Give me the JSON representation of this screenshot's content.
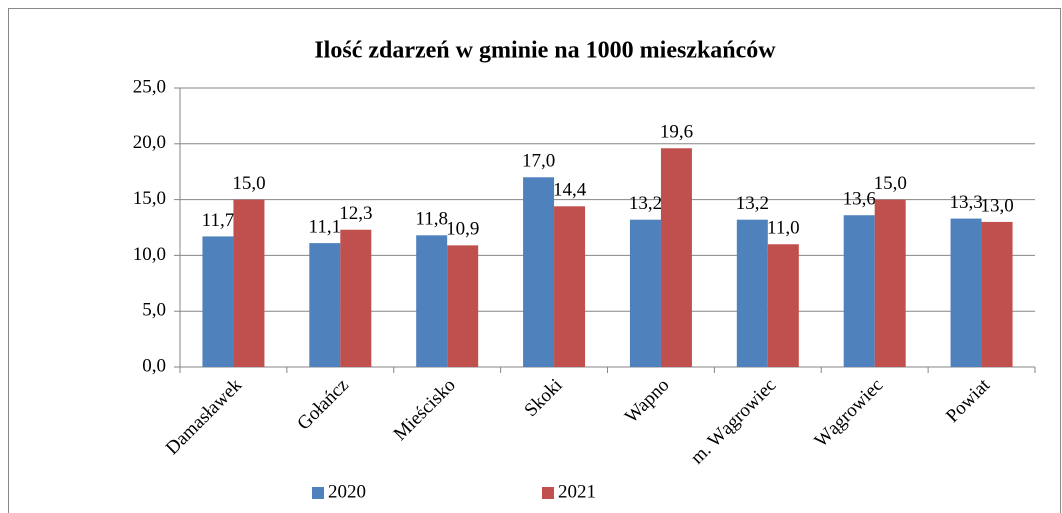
{
  "chart_data": {
    "type": "bar",
    "title": "Ilość zdarzeń w gminie na 1000 mieszkańców",
    "categories": [
      "Damasławek",
      "Gołańcz",
      "Mieścisko",
      "Skoki",
      "Wapno",
      "m. Wągrowiec",
      "Wągrowiec",
      "Powiat"
    ],
    "series": [
      {
        "name": "2020",
        "color": "#4f81bd",
        "values": [
          11.7,
          11.1,
          11.8,
          17.0,
          13.2,
          13.2,
          13.6,
          13.3
        ],
        "value_labels": [
          "11,7",
          "11,1",
          "11,8",
          "17,0",
          "13,2",
          "13,2",
          "13,6",
          "13,3"
        ]
      },
      {
        "name": "2021",
        "color": "#c0504d",
        "values": [
          15.0,
          12.3,
          10.9,
          14.4,
          19.6,
          11.0,
          15.0,
          13.0
        ],
        "value_labels": [
          "15,0",
          "12,3",
          "10,9",
          "14,4",
          "19,6",
          "11,0",
          "15,0",
          "13,0"
        ]
      }
    ],
    "ylim": [
      0,
      25
    ],
    "yticks": [
      {
        "value": 0,
        "label": "0,0"
      },
      {
        "value": 5,
        "label": "5,0"
      },
      {
        "value": 10,
        "label": "10,0"
      },
      {
        "value": 15,
        "label": "15,0"
      },
      {
        "value": 20,
        "label": "20,0"
      },
      {
        "value": 25,
        "label": "25,0"
      }
    ],
    "grid": true,
    "legend": "bottom"
  }
}
